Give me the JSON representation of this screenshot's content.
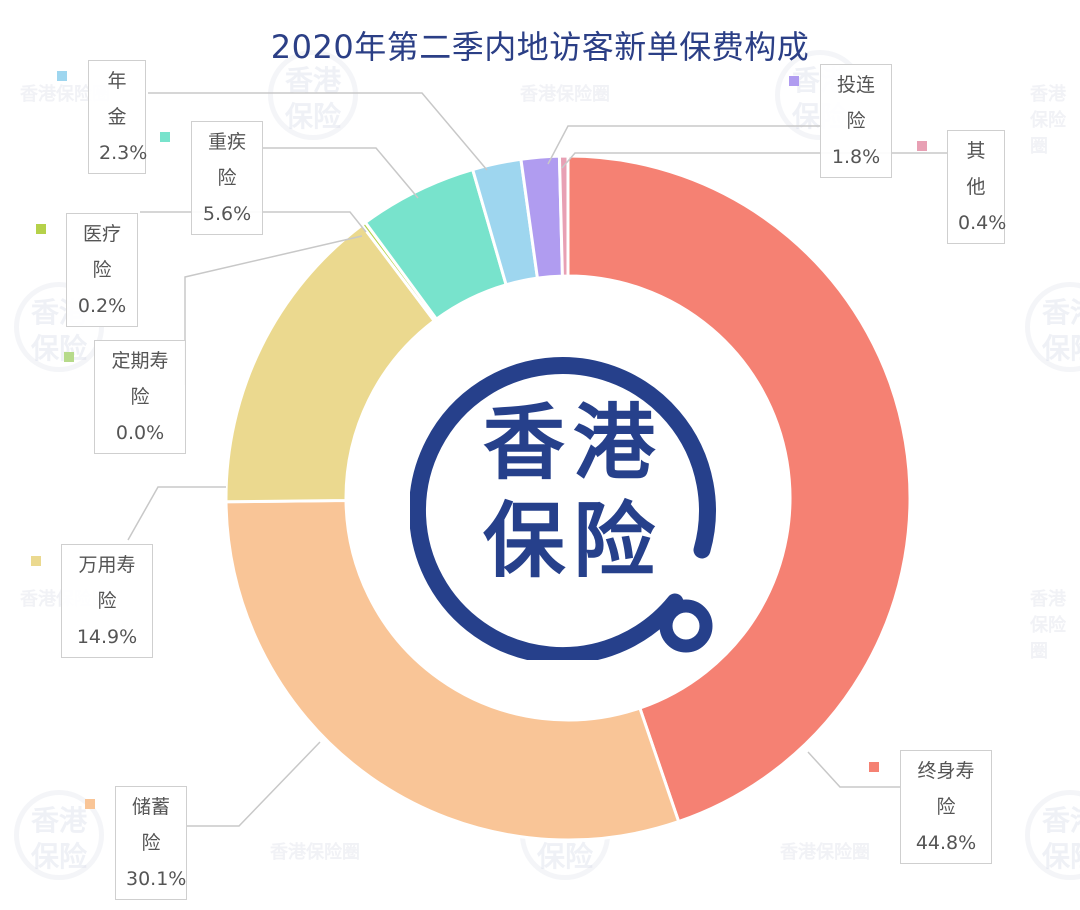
{
  "title": "2020年第二季内地访客新单保费构成",
  "logo": {
    "line1": "香港",
    "line2": "保险",
    "color": "#26408b"
  },
  "watermark_text": "香港保险圈",
  "chart_data": {
    "type": "pie",
    "variant": "donut",
    "title": "2020年第二季内地访客新单保费构成",
    "unit": "%",
    "start_angle": "top, clockwise",
    "categories": [
      "终身寿险",
      "储蓄险",
      "万用寿险",
      "定期寿险",
      "医疗险",
      "重疾险",
      "年金",
      "投连险",
      "其他"
    ],
    "values": [
      44.8,
      30.1,
      14.9,
      0.0,
      0.2,
      5.6,
      2.3,
      1.8,
      0.4
    ],
    "labels": [
      "44.8%",
      "30.1%",
      "14.9%",
      "0.0%",
      "0.2%",
      "5.6%",
      "2.3%",
      "1.8%",
      "0.4%"
    ],
    "colors": [
      "#f58173",
      "#f9c597",
      "#ebd98f",
      "#b6da8a",
      "#b5d14a",
      "#78e3cc",
      "#9ed6ef",
      "#b09cf0",
      "#e8a0b4"
    ],
    "legend_position": "labels with leader lines"
  },
  "labels": [
    {
      "name": "年金",
      "value": "2.3%"
    },
    {
      "name": "重疾险",
      "value": "5.6%"
    },
    {
      "name": "医疗险",
      "value": "0.2%"
    },
    {
      "name": "定期寿险",
      "value": "0.0%"
    },
    {
      "name": "万用寿险",
      "value": "14.9%"
    },
    {
      "name": "储蓄险",
      "value": "30.1%"
    },
    {
      "name": "终身寿险",
      "value": "44.8%"
    },
    {
      "name": "投连险",
      "value": "1.8%"
    },
    {
      "name": "其他",
      "value": "0.4%"
    }
  ]
}
